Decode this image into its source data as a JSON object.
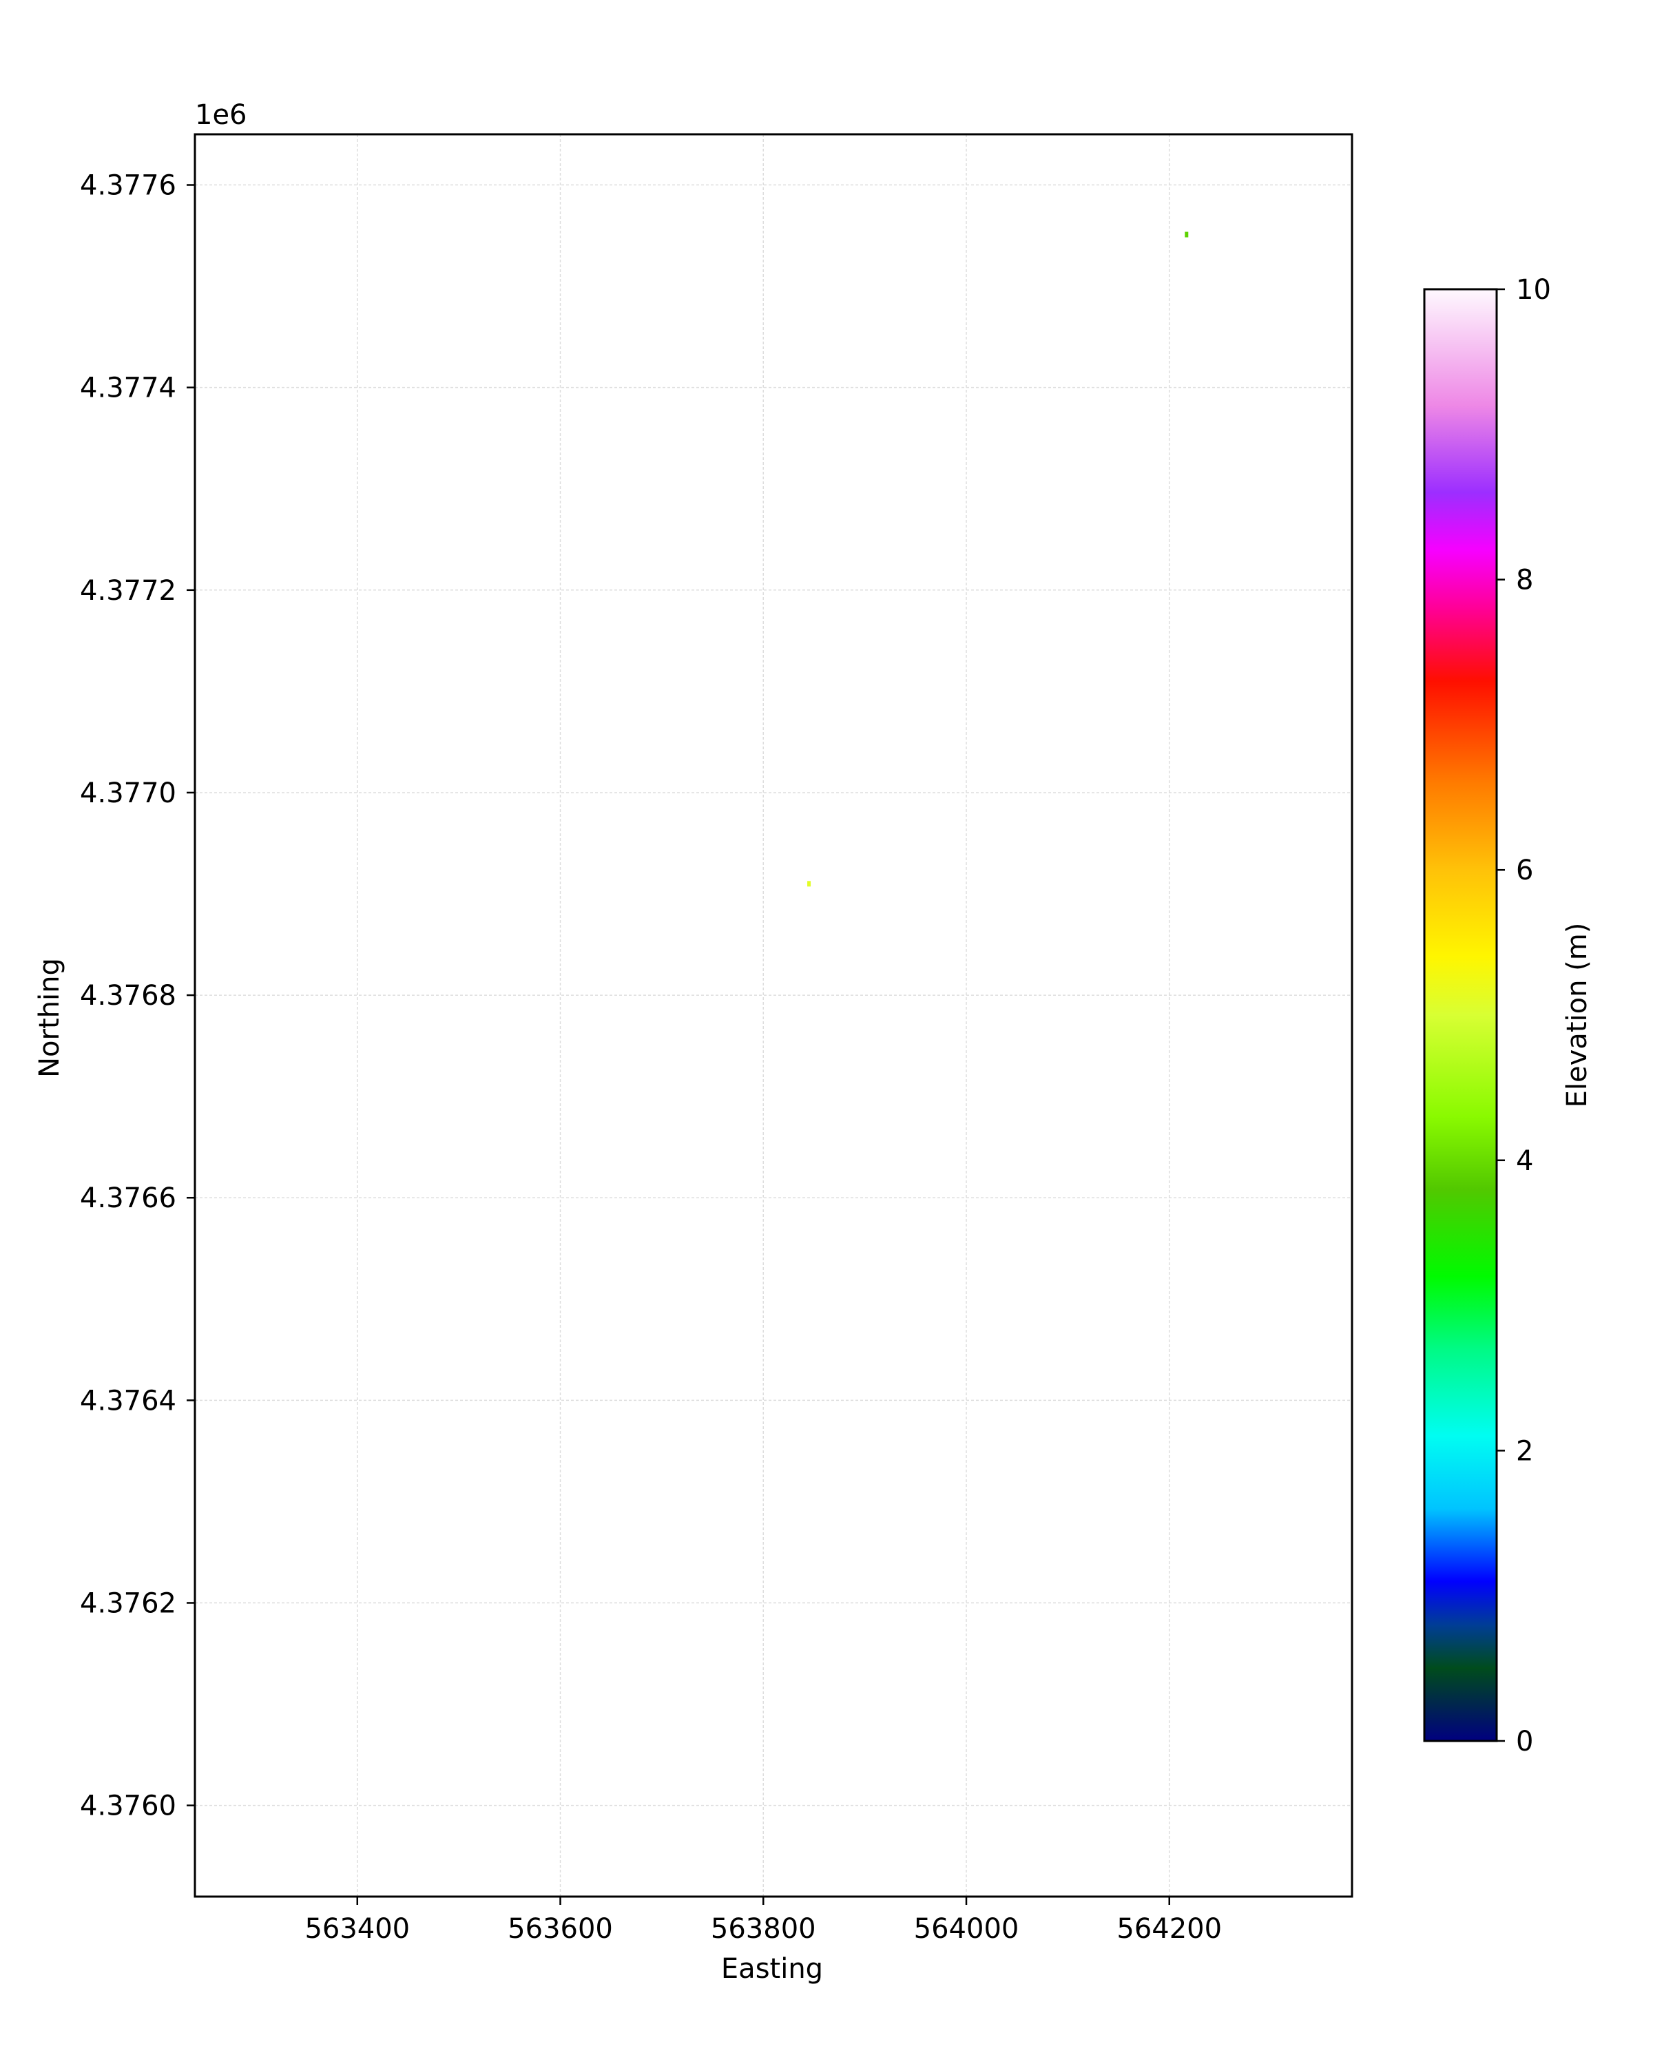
{
  "chart_data": {
    "type": "heatmap",
    "xlabel": "Easting",
    "ylabel": "Northing",
    "y_offset_text": "1e6",
    "xlim": [
      563240,
      564380
    ],
    "ylim": [
      4375910,
      4377650
    ],
    "x_ticks": [
      {
        "value": 563400,
        "label": "563400"
      },
      {
        "value": 563600,
        "label": "563600"
      },
      {
        "value": 563800,
        "label": "563800"
      },
      {
        "value": 564000,
        "label": "564000"
      },
      {
        "value": 564200,
        "label": "564200"
      }
    ],
    "y_ticks": [
      {
        "value": 4376000,
        "label": "4.3760"
      },
      {
        "value": 4376200,
        "label": "4.3762"
      },
      {
        "value": 4376400,
        "label": "4.3764"
      },
      {
        "value": 4376600,
        "label": "4.3766"
      },
      {
        "value": 4376800,
        "label": "4.3768"
      },
      {
        "value": 4377000,
        "label": "4.3770"
      },
      {
        "value": 4377200,
        "label": "4.3772"
      },
      {
        "value": 4377400,
        "label": "4.3774"
      },
      {
        "value": 4377600,
        "label": "4.3776"
      }
    ],
    "grid": true,
    "points": [
      {
        "x": 564217,
        "y": 4377551,
        "value": 3.9
      },
      {
        "x": 563845,
        "y": 4376910,
        "value": 5.1
      }
    ],
    "colorbar": {
      "label": "Elevation (m)",
      "range": [
        0,
        10
      ],
      "ticks": [
        {
          "value": 0,
          "label": "0"
        },
        {
          "value": 2,
          "label": "2"
        },
        {
          "value": 4,
          "label": "4"
        },
        {
          "value": 6,
          "label": "6"
        },
        {
          "value": 8,
          "label": "8"
        },
        {
          "value": 10,
          "label": "10"
        }
      ],
      "colormap": "gist_ncar",
      "colors": [
        {
          "value": 0.0,
          "color": "#000080"
        },
        {
          "value": 0.5,
          "color": "#004c1c"
        },
        {
          "value": 0.8,
          "color": "#003d96"
        },
        {
          "value": 1.1,
          "color": "#0000ff"
        },
        {
          "value": 1.6,
          "color": "#00c4ff"
        },
        {
          "value": 2.1,
          "color": "#00fdf2"
        },
        {
          "value": 2.7,
          "color": "#00fa85"
        },
        {
          "value": 3.2,
          "color": "#00fb00"
        },
        {
          "value": 3.8,
          "color": "#52c800"
        },
        {
          "value": 4.3,
          "color": "#8afa00"
        },
        {
          "value": 5.0,
          "color": "#d8ff33"
        },
        {
          "value": 5.4,
          "color": "#fff600"
        },
        {
          "value": 6.0,
          "color": "#ffc208"
        },
        {
          "value": 6.6,
          "color": "#ff7b00"
        },
        {
          "value": 7.3,
          "color": "#ff0f00"
        },
        {
          "value": 7.8,
          "color": "#ff0096"
        },
        {
          "value": 8.2,
          "color": "#f700ff"
        },
        {
          "value": 8.6,
          "color": "#9c2eff"
        },
        {
          "value": 9.2,
          "color": "#ee88e6"
        },
        {
          "value": 10.0,
          "color": "#fef8fe"
        }
      ]
    }
  }
}
